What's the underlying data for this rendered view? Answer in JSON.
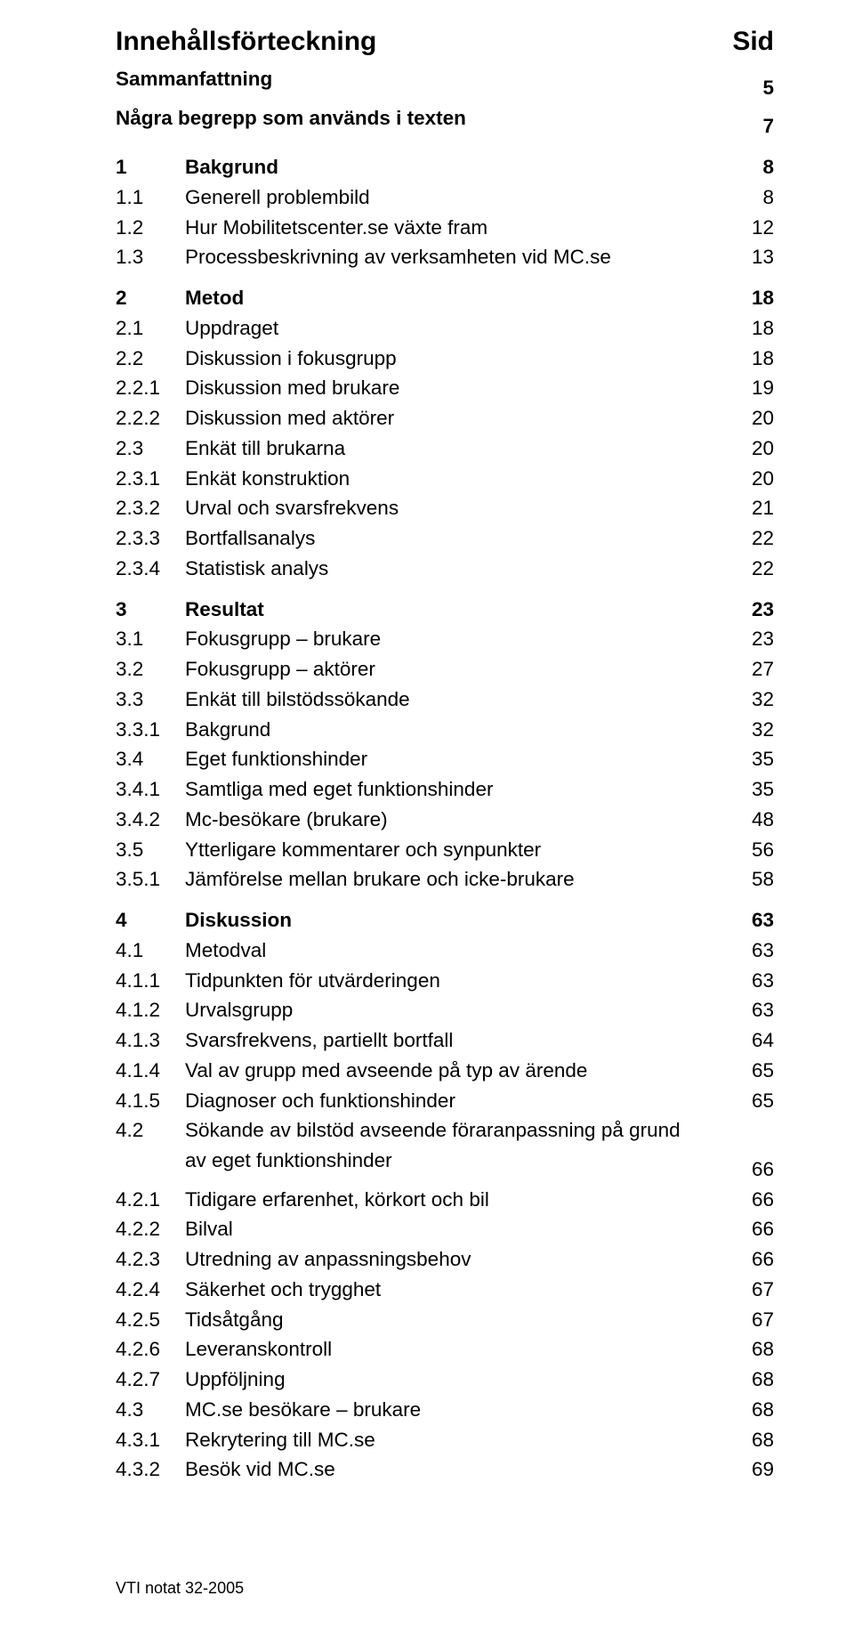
{
  "header": {
    "title": "Innehållsförteckning",
    "page_col": "Sid"
  },
  "entries": [
    {
      "num": "",
      "label": "Sammanfattning",
      "page": "5",
      "bold": true,
      "no_num": true
    },
    {
      "num": "",
      "label": "Några begrepp som används i texten",
      "page": "7",
      "bold": true,
      "no_num": true
    },
    {
      "gap": true
    },
    {
      "num": "1",
      "label": "Bakgrund",
      "page": "8",
      "bold": true
    },
    {
      "num": "1.1",
      "label": "Generell problembild",
      "page": "8"
    },
    {
      "num": "1.2",
      "label": "Hur Mobilitetscenter.se växte fram",
      "page": "12"
    },
    {
      "num": "1.3",
      "label": "Processbeskrivning av verksamheten vid MC.se",
      "page": "13"
    },
    {
      "gap": true
    },
    {
      "num": "2",
      "label": "Metod",
      "page": "18",
      "bold": true
    },
    {
      "num": "2.1",
      "label": "Uppdraget",
      "page": "18"
    },
    {
      "num": "2.2",
      "label": "Diskussion i fokusgrupp",
      "page": "18"
    },
    {
      "num": "2.2.1",
      "label": "Diskussion med brukare",
      "page": "19"
    },
    {
      "num": "2.2.2",
      "label": "Diskussion med aktörer",
      "page": "20"
    },
    {
      "num": "2.3",
      "label": "Enkät till brukarna",
      "page": "20"
    },
    {
      "num": "2.3.1",
      "label": "Enkät konstruktion",
      "page": "20"
    },
    {
      "num": "2.3.2",
      "label": "Urval och svarsfrekvens",
      "page": "21"
    },
    {
      "num": "2.3.3",
      "label": "Bortfallsanalys",
      "page": "22"
    },
    {
      "num": "2.3.4",
      "label": "Statistisk analys",
      "page": "22"
    },
    {
      "gap": true
    },
    {
      "num": "3",
      "label": "Resultat",
      "page": "23",
      "bold": true
    },
    {
      "num": "3.1",
      "label": "Fokusgrupp – brukare",
      "page": "23"
    },
    {
      "num": "3.2",
      "label": "Fokusgrupp – aktörer",
      "page": "27"
    },
    {
      "num": "3.3",
      "label": "Enkät till bilstödssökande",
      "page": "32"
    },
    {
      "num": "3.3.1",
      "label": "Bakgrund",
      "page": "32"
    },
    {
      "num": "3.4",
      "label": "Eget funktionshinder",
      "page": "35"
    },
    {
      "num": "3.4.1",
      "label": "Samtliga med eget funktionshinder",
      "page": "35"
    },
    {
      "num": "3.4.2",
      "label": "Mc-besökare (brukare)",
      "page": "48"
    },
    {
      "num": "3.5",
      "label": "Ytterligare kommentarer och synpunkter",
      "page": "56"
    },
    {
      "num": "3.5.1",
      "label": "Jämförelse mellan brukare och icke-brukare",
      "page": "58"
    },
    {
      "gap": true
    },
    {
      "num": "4",
      "label": "Diskussion",
      "page": "63",
      "bold": true
    },
    {
      "num": "4.1",
      "label": "Metodval",
      "page": "63"
    },
    {
      "num": "4.1.1",
      "label": "Tidpunkten för utvärderingen",
      "page": "63"
    },
    {
      "num": "4.1.2",
      "label": "Urvalsgrupp",
      "page": "63"
    },
    {
      "num": "4.1.3",
      "label": "Svarsfrekvens, partiellt bortfall",
      "page": "64"
    },
    {
      "num": "4.1.4",
      "label": "Val av grupp med avseende på typ av ärende",
      "page": "65"
    },
    {
      "num": "4.1.5",
      "label": "Diagnoser och funktionshinder",
      "page": "65"
    },
    {
      "num": "4.2",
      "label": "Sökande av bilstöd avseende föraranpassning på grund",
      "page": ""
    },
    {
      "num": "",
      "label": "av eget funktionshinder",
      "page": "66"
    },
    {
      "num": "4.2.1",
      "label": "Tidigare erfarenhet, körkort och bil",
      "page": "66"
    },
    {
      "num": "4.2.2",
      "label": "Bilval",
      "page": "66"
    },
    {
      "num": "4.2.3",
      "label": "Utredning av anpassningsbehov",
      "page": "66"
    },
    {
      "num": "4.2.4",
      "label": "Säkerhet och trygghet",
      "page": "67"
    },
    {
      "num": "4.2.5",
      "label": "Tidsåtgång",
      "page": "67"
    },
    {
      "num": "4.2.6",
      "label": "Leveranskontroll",
      "page": "68"
    },
    {
      "num": "4.2.7",
      "label": "Uppföljning",
      "page": "68"
    },
    {
      "num": "4.3",
      "label": "MC.se besökare – brukare",
      "page": "68"
    },
    {
      "num": "4.3.1",
      "label": "Rekrytering till MC.se",
      "page": "68"
    },
    {
      "num": "4.3.2",
      "label": "Besök vid MC.se",
      "page": "69"
    }
  ],
  "footer": "VTI notat 32-2005"
}
